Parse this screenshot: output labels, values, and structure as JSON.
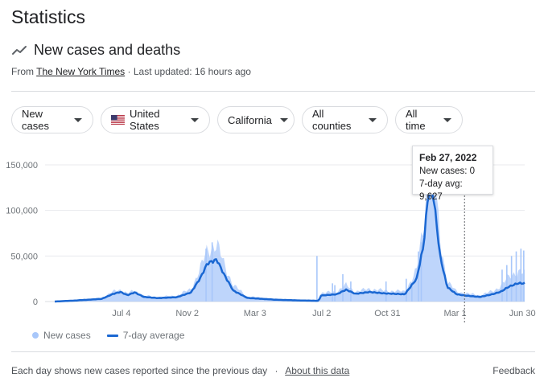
{
  "header": {
    "title": "Statistics"
  },
  "section": {
    "title": "New cases and deaths",
    "icon": "trending-line-icon",
    "source_prefix": "From",
    "source_name": "The New York Times",
    "updated": "· Last updated: 16 hours ago"
  },
  "filters": {
    "metric": "New cases",
    "country": "United States",
    "state": "California",
    "county": "All counties",
    "period": "All time"
  },
  "tooltip": {
    "date": "Feb 27, 2022",
    "new_cases": "New cases: 0",
    "avg": "7-day avg: 9,627"
  },
  "legend": {
    "bars": "New cases",
    "line": "7-day average"
  },
  "footer": {
    "note": "Each day shows new cases reported since the previous day",
    "separator": "·",
    "about": "About this data",
    "feedback": "Feedback"
  },
  "colors": {
    "bar": "#a8c7fa",
    "line": "#1a67d2",
    "grid": "#e8eaed"
  },
  "chart_data": {
    "type": "bar",
    "y_ticks": [
      "0",
      "50,000",
      "100,000",
      "150,000"
    ],
    "ylim": [
      0,
      150000
    ],
    "x_ticks": [
      "Jul 4",
      "Nov 2",
      "Mar 3",
      "Jul 2",
      "Oct 31",
      "Mar 1",
      "Jun 30"
    ],
    "series": [
      {
        "name": "New cases",
        "type": "bar"
      },
      {
        "name": "7-day average",
        "type": "line"
      }
    ],
    "avg_points": [
      [
        0,
        0
      ],
      [
        0.04,
        1000
      ],
      [
        0.08,
        2300
      ],
      [
        0.1,
        3000
      ],
      [
        0.125,
        8500
      ],
      [
        0.14,
        10500
      ],
      [
        0.155,
        7000
      ],
      [
        0.17,
        10000
      ],
      [
        0.19,
        5000
      ],
      [
        0.22,
        3800
      ],
      [
        0.26,
        4800
      ],
      [
        0.29,
        10000
      ],
      [
        0.31,
        26000
      ],
      [
        0.325,
        42000
      ],
      [
        0.345,
        46000
      ],
      [
        0.36,
        30000
      ],
      [
        0.38,
        12000
      ],
      [
        0.41,
        4000
      ],
      [
        0.47,
        2000
      ],
      [
        0.52,
        1200
      ],
      [
        0.563,
        800
      ],
      [
        0.564,
        6500
      ],
      [
        0.6,
        8000
      ],
      [
        0.62,
        13000
      ],
      [
        0.64,
        8500
      ],
      [
        0.67,
        10500
      ],
      [
        0.7,
        9000
      ],
      [
        0.745,
        8000
      ],
      [
        0.77,
        25000
      ],
      [
        0.785,
        62000
      ],
      [
        0.795,
        120000
      ],
      [
        0.805,
        120000
      ],
      [
        0.82,
        50000
      ],
      [
        0.835,
        16000
      ],
      [
        0.855,
        8000
      ],
      [
        0.875,
        6500
      ],
      [
        0.905,
        5000
      ],
      [
        0.935,
        8500
      ],
      [
        0.95,
        11000
      ],
      [
        0.965,
        16000
      ],
      [
        0.985,
        20000
      ],
      [
        1,
        20000
      ]
    ],
    "bar_points": [
      [
        0,
        0
      ],
      [
        0.04,
        1500
      ],
      [
        0.08,
        3000
      ],
      [
        0.1,
        4000
      ],
      [
        0.125,
        11000
      ],
      [
        0.14,
        13000
      ],
      [
        0.155,
        9000
      ],
      [
        0.17,
        12000
      ],
      [
        0.19,
        6500
      ],
      [
        0.22,
        5000
      ],
      [
        0.26,
        6500
      ],
      [
        0.29,
        14000
      ],
      [
        0.31,
        36000
      ],
      [
        0.325,
        58000
      ],
      [
        0.345,
        62000
      ],
      [
        0.36,
        42000
      ],
      [
        0.38,
        18000
      ],
      [
        0.41,
        5500
      ],
      [
        0.47,
        3000
      ],
      [
        0.52,
        1800
      ],
      [
        0.563,
        1200
      ],
      [
        0.564,
        9000
      ],
      [
        0.6,
        11000
      ],
      [
        0.62,
        18000
      ],
      [
        0.64,
        11000
      ],
      [
        0.67,
        14000
      ],
      [
        0.7,
        12000
      ],
      [
        0.745,
        11000
      ],
      [
        0.77,
        34000
      ],
      [
        0.785,
        85000
      ],
      [
        0.795,
        152000
      ],
      [
        0.805,
        150000
      ],
      [
        0.82,
        70000
      ],
      [
        0.835,
        22000
      ],
      [
        0.855,
        11000
      ],
      [
        0.875,
        9000
      ],
      [
        0.905,
        7000
      ],
      [
        0.935,
        12000
      ],
      [
        0.95,
        18000
      ],
      [
        0.965,
        26000
      ],
      [
        0.985,
        34000
      ],
      [
        1,
        30000
      ]
    ],
    "spikes": [
      [
        0.558,
        50000
      ],
      [
        0.591,
        20000
      ],
      [
        0.596,
        18000
      ],
      [
        0.613,
        30000
      ],
      [
        0.63,
        22000
      ],
      [
        0.705,
        22000
      ],
      [
        0.748,
        25000
      ],
      [
        0.76,
        20000
      ],
      [
        0.774,
        55000
      ],
      [
        0.78,
        65000
      ],
      [
        0.952,
        35000
      ],
      [
        0.962,
        40000
      ],
      [
        0.972,
        50000
      ],
      [
        0.982,
        55000
      ],
      [
        0.992,
        58000
      ],
      [
        0.998,
        56000
      ],
      [
        0.335,
        65000
      ],
      [
        0.322,
        58000
      ]
    ],
    "hover_fraction": 0.872
  }
}
